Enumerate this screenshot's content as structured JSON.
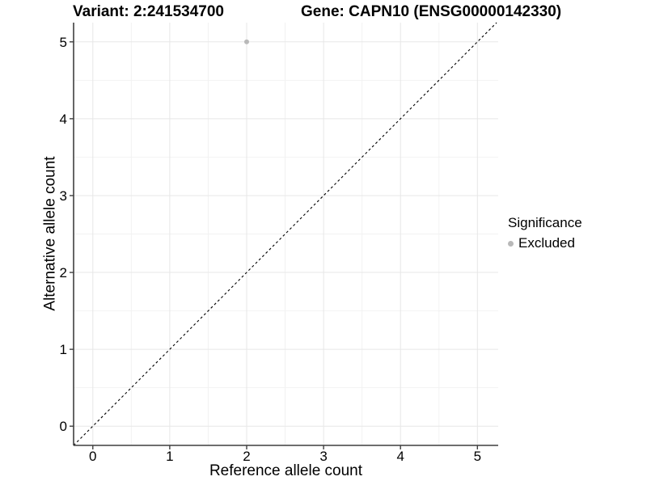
{
  "title_bar": {
    "variant": "Variant: 2:241534700",
    "gene": "Gene: CAPN10 (ENSG00000142330)"
  },
  "chart_data": {
    "type": "scatter",
    "xlabel": "Reference allele count",
    "ylabel": "Alternative allele count",
    "x_ticks": [
      0,
      1,
      2,
      3,
      4,
      5
    ],
    "y_ticks": [
      0,
      1,
      2,
      3,
      4,
      5
    ],
    "xlim": [
      -0.25,
      5.27
    ],
    "ylim": [
      -0.25,
      5.25
    ],
    "grid": {
      "major": true,
      "minor": true
    },
    "points": [
      {
        "x": 2,
        "y": 5,
        "significance": "Excluded"
      }
    ],
    "diagonal_line": {
      "slope": 1,
      "intercept": 0,
      "style": "dashed"
    },
    "legend": {
      "title": "Significance",
      "position": "right",
      "entries": [
        {
          "label": "Excluded",
          "color": "#b9b9b9"
        }
      ]
    }
  },
  "colors": {
    "background": "#ffffff",
    "grid_major": "#e7e7e7",
    "grid_minor": "#f2f2f2",
    "axis": "#3f3f3f",
    "diagonal": "#000000",
    "point": "#b9b9b9",
    "text": "#000000"
  }
}
